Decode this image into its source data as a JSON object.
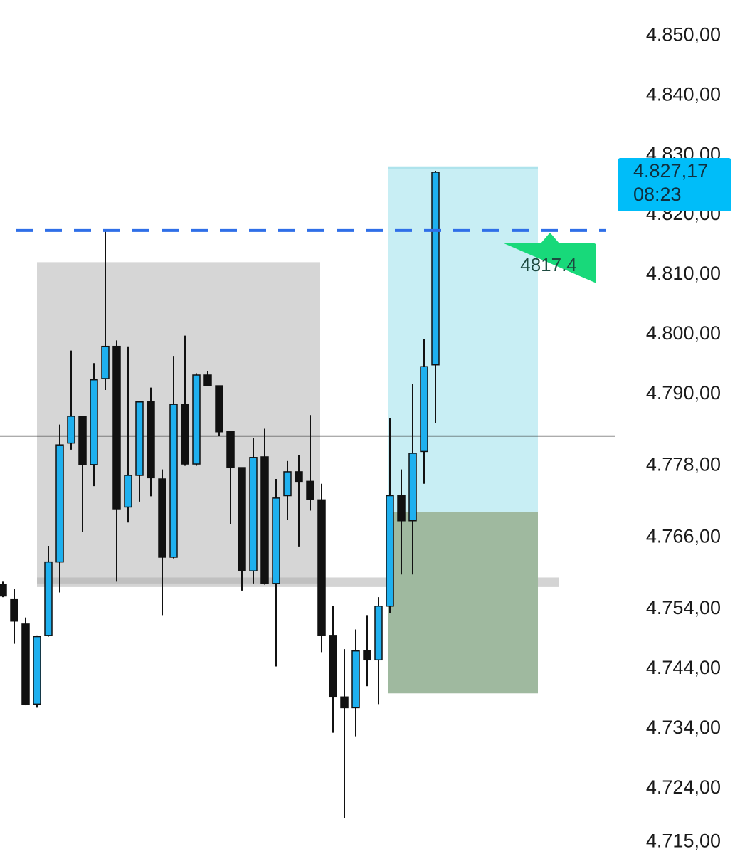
{
  "chart_data": {
    "type": "candlestick",
    "open": [
      4758.1,
      4755.7,
      4751.5,
      4738.1,
      4749.6,
      4761.9,
      4781.8,
      4786.3,
      4778.2,
      4792.6,
      4798.0,
      4771.1,
      4776.4,
      4788.7,
      4775.8,
      4762.7,
      4788.3,
      4778.3,
      4793.2,
      4791.4,
      4783.7,
      4777.7,
      4760.4,
      4779.5,
      4758.3,
      4773.0,
      4777.0,
      4775.4,
      4772.3,
      4749.6,
      4739.3,
      4737.5,
      4747.0,
      4745.5,
      4754.5,
      4773.0,
      4768.8,
      4780.4,
      4794.9
    ],
    "high": [
      4758.6,
      4757.4,
      4752.6,
      4749.6,
      4764.6,
      4784.9,
      4797.3,
      4786.3,
      4795.2,
      4817.3,
      4799.0,
      4798.0,
      4788.9,
      4791.1,
      4777.4,
      4796.4,
      4799.8,
      4793.5,
      4793.8,
      4791.4,
      4783.7,
      4777.7,
      4782.7,
      4784.2,
      4775.8,
      4778.8,
      4779.8,
      4786.5,
      4775.0,
      4754.5,
      4747.3,
      4750.6,
      4753.0,
      4756.0,
      4786.0,
      4777.4,
      4791.7,
      4799.2,
      4827.4
    ],
    "low": [
      4756.0,
      4748.2,
      4737.9,
      4737.5,
      4749.4,
      4756.8,
      4780.7,
      4766.9,
      4774.6,
      4790.7,
      4758.6,
      4768.5,
      4772.0,
      4772.9,
      4753.0,
      4762.5,
      4778.0,
      4778.0,
      4791.4,
      4783.0,
      4768.2,
      4757.1,
      4758.3,
      4758.1,
      4744.4,
      4769.0,
      4764.5,
      4770.5,
      4746.8,
      4733.3,
      4719.0,
      4732.7,
      4741.1,
      4738.1,
      4753.3,
      4759.8,
      4759.8,
      4775.0,
      4785.1
    ],
    "close": [
      4756.2,
      4752.0,
      4738.1,
      4749.4,
      4761.9,
      4781.5,
      4786.3,
      4778.2,
      4792.4,
      4798.0,
      4770.8,
      4776.4,
      4788.7,
      4776.0,
      4762.7,
      4788.3,
      4778.3,
      4793.2,
      4791.4,
      4783.7,
      4777.7,
      4760.4,
      4779.4,
      4758.3,
      4772.6,
      4777.0,
      4775.4,
      4772.4,
      4749.6,
      4739.3,
      4737.5,
      4747.0,
      4745.5,
      4754.5,
      4773.0,
      4768.8,
      4780.1,
      4794.6,
      4827.17
    ],
    "up_color": "#1eb0ef",
    "down_color": "#111111",
    "ylim": [
      4713,
      4856
    ],
    "yticks": [
      {
        "value": 4850,
        "label": "4.850,00"
      },
      {
        "value": 4840,
        "label": "4.840,00"
      },
      {
        "value": 4830,
        "label": "4.830,00"
      },
      {
        "value": 4820,
        "label": "4.820,00"
      },
      {
        "value": 4810,
        "label": "4.810,00"
      },
      {
        "value": 4800,
        "label": "4.800,00"
      },
      {
        "value": 4790,
        "label": "4.790,00"
      },
      {
        "value": 4778,
        "label": "4.778,00"
      },
      {
        "value": 4766,
        "label": "4.766,00"
      },
      {
        "value": 4754,
        "label": "4.754,00"
      },
      {
        "value": 4744,
        "label": "4.744,00"
      },
      {
        "value": 4734,
        "label": "4.734,00"
      },
      {
        "value": 4724,
        "label": "4.724,00"
      },
      {
        "value": 4715,
        "label": "4.715,00"
      }
    ],
    "zones": [
      {
        "ymin": 4758.3,
        "ymax": 4812.1,
        "color": "#d6d6d6"
      },
      {
        "ymin": 4757.7,
        "ymax": 4759.3,
        "color": "rgba(170,170,170,0.5)"
      },
      {
        "ymin": 4770.2,
        "ymax": 4827.9,
        "color": "#c8eef4"
      },
      {
        "ymin": 4739.9,
        "ymax": 4770.2,
        "color": "#9fb99f"
      }
    ],
    "alert_level": {
      "value": 4817.4,
      "color": "#2f6fe8",
      "label_color": "#18d97a"
    },
    "crosshair_level": 4783,
    "last_price": {
      "value": 4827.17,
      "label": "4.827,17",
      "countdown": "08:23",
      "color": "#00bdf9"
    }
  }
}
